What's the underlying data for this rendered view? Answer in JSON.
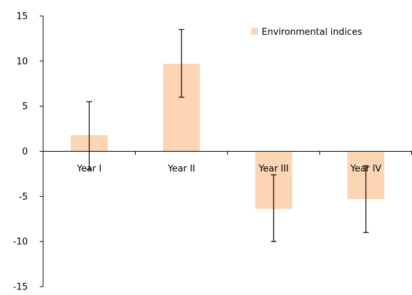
{
  "chart_data": {
    "type": "bar",
    "categories": [
      "Year I",
      "Year II",
      "Year III",
      "Year IV"
    ],
    "series": [
      {
        "name": "Environmental indices",
        "values": [
          1.8,
          9.7,
          -6.4,
          -5.3
        ],
        "error_low": [
          -2.0,
          6.0,
          -10.0,
          -9.0
        ],
        "error_high": [
          5.5,
          13.5,
          -2.6,
          -1.6
        ],
        "color": "#FCD5B5"
      }
    ],
    "ylim": [
      -15,
      15
    ],
    "yticks": [
      "15",
      "10",
      "5",
      "0",
      "-5",
      "-10",
      "-15"
    ],
    "ytick_values": [
      15,
      10,
      5,
      0,
      -5,
      -10,
      -15
    ],
    "legend_position": "top-right",
    "grid": false,
    "axis_color": "#000000"
  }
}
